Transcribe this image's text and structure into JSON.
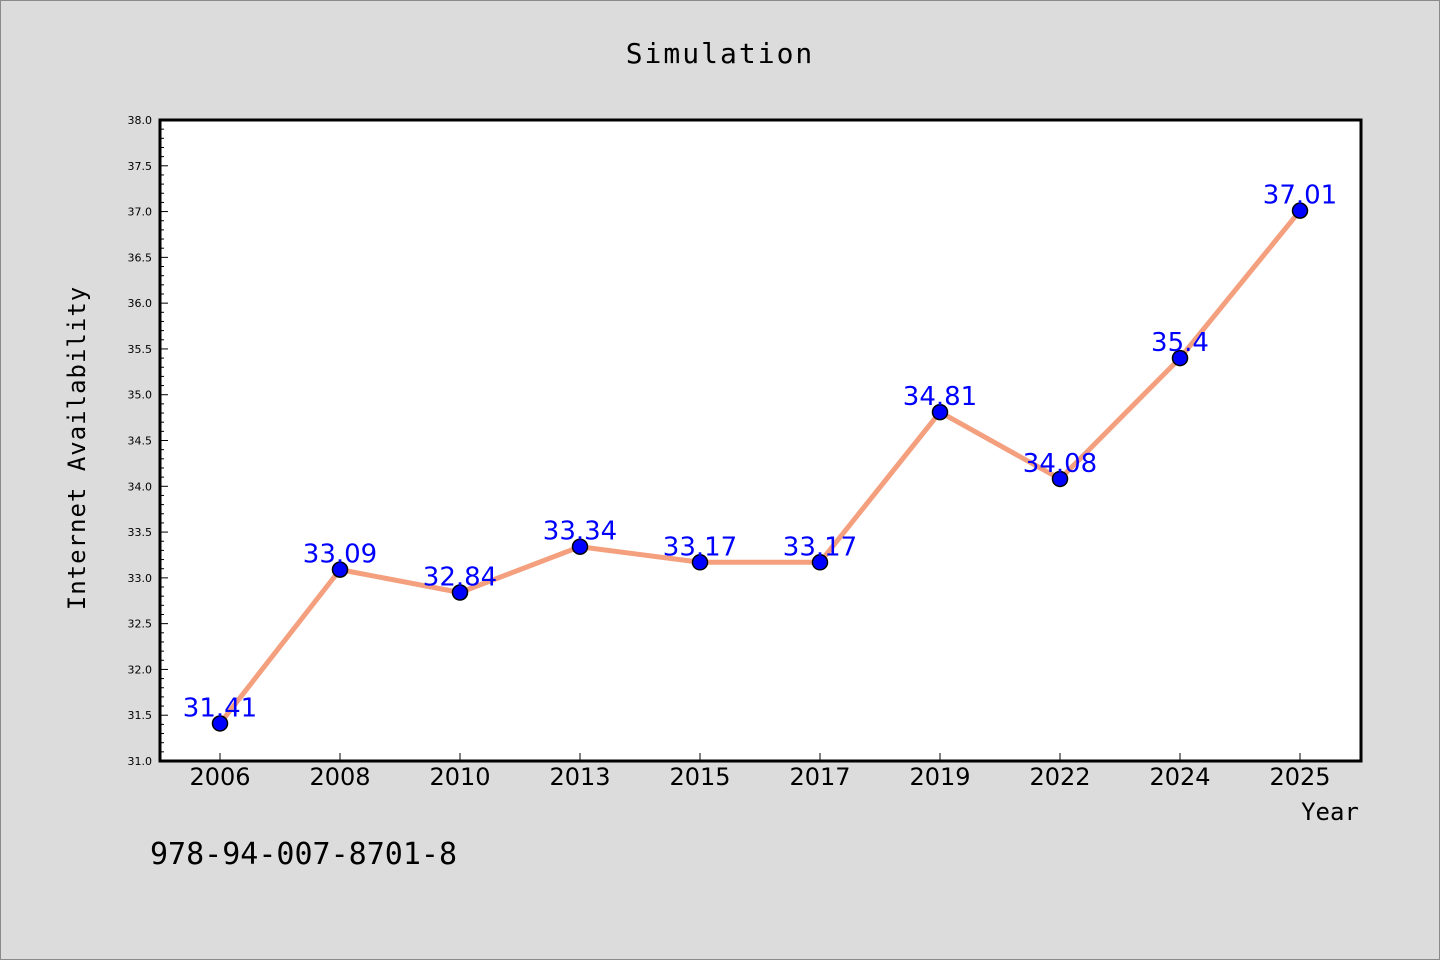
{
  "chart_data": {
    "type": "line",
    "title": "Simulation",
    "xlabel": "Year",
    "ylabel": "Internet Availability",
    "categories": [
      "2006",
      "2008",
      "2010",
      "2013",
      "2015",
      "2017",
      "2019",
      "2022",
      "2024",
      "2025"
    ],
    "values": [
      31.41,
      33.09,
      32.84,
      33.34,
      33.17,
      33.17,
      34.81,
      34.08,
      35.4,
      37.01
    ],
    "data_labels": [
      "31.41",
      "33.09",
      "32.84",
      "33.34",
      "33.17",
      "33.17",
      "34.81",
      "34.08",
      "35.4",
      "37.01"
    ],
    "ylim": [
      31.0,
      38.0
    ],
    "yticks": [
      "31.0",
      "31.5",
      "32.0",
      "32.5",
      "33.0",
      "33.5",
      "34.0",
      "34.5",
      "35.0",
      "35.5",
      "36.0",
      "36.5",
      "37.0",
      "37.5",
      "38.0"
    ],
    "grid": false,
    "legend": false,
    "colors": {
      "line": "#f4a07e",
      "marker": "#0000ff",
      "label": "#0000ff",
      "background": "#dcdcdc",
      "plot_background": "#ffffff"
    }
  },
  "footer": {
    "isbn": "978-94-007-8701-8"
  }
}
